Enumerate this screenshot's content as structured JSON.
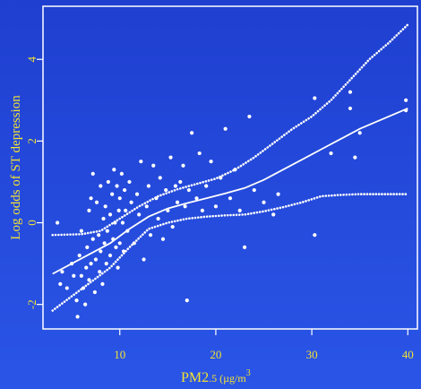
{
  "colors": {
    "background": "#2448dc",
    "foreground": "#ffffff",
    "text": "#f2e233"
  },
  "chart_data": {
    "type": "scatter",
    "title": "",
    "xlabel": "PM2.5 (µg/m",
    "xlabel_parts": {
      "base": "PM2",
      "sub": ".5 (µg/m",
      "sup": "3"
    },
    "ylabel": "Log odds of ST depression",
    "xlim": [
      2,
      41
    ],
    "ylim": [
      -2.6,
      5.3
    ],
    "x_ticks": [
      10,
      20,
      30,
      40
    ],
    "y_ticks": [
      -2,
      0,
      2,
      4
    ],
    "grid": false,
    "series": [
      {
        "style": "line",
        "points": [
          [
            3,
            -1.25
          ],
          [
            5,
            -1.0
          ],
          [
            7,
            -0.75
          ],
          [
            9,
            -0.5
          ],
          [
            11,
            -0.15
          ],
          [
            13,
            0.15
          ],
          [
            15,
            0.35
          ],
          [
            17,
            0.48
          ],
          [
            19,
            0.6
          ],
          [
            21,
            0.72
          ],
          [
            23,
            0.85
          ],
          [
            25,
            1.05
          ],
          [
            27,
            1.3
          ],
          [
            29,
            1.55
          ],
          [
            31,
            1.8
          ],
          [
            33,
            2.05
          ],
          [
            35,
            2.3
          ],
          [
            37,
            2.5
          ],
          [
            40,
            2.8
          ]
        ]
      },
      {
        "style": "dotted",
        "points": [
          [
            3,
            -0.3
          ],
          [
            6,
            -0.28
          ],
          [
            8,
            -0.2
          ],
          [
            10,
            0.1
          ],
          [
            12,
            0.4
          ],
          [
            14,
            0.65
          ],
          [
            16,
            0.82
          ],
          [
            18,
            0.95
          ],
          [
            20,
            1.08
          ],
          [
            22,
            1.3
          ],
          [
            24,
            1.6
          ],
          [
            26,
            1.95
          ],
          [
            28,
            2.3
          ],
          [
            30,
            2.6
          ],
          [
            32,
            3.0
          ],
          [
            34,
            3.5
          ],
          [
            36,
            4.0
          ],
          [
            38,
            4.4
          ],
          [
            40,
            4.85
          ]
        ]
      },
      {
        "style": "dotted",
        "points": [
          [
            3,
            -2.15
          ],
          [
            5,
            -1.8
          ],
          [
            7,
            -1.45
          ],
          [
            9,
            -1.1
          ],
          [
            11,
            -0.6
          ],
          [
            13,
            -0.15
          ],
          [
            15,
            0.0
          ],
          [
            17,
            0.1
          ],
          [
            19,
            0.15
          ],
          [
            21,
            0.18
          ],
          [
            23,
            0.2
          ],
          [
            25,
            0.28
          ],
          [
            27,
            0.38
          ],
          [
            29,
            0.5
          ],
          [
            31,
            0.65
          ],
          [
            33,
            0.68
          ],
          [
            35,
            0.7
          ],
          [
            37,
            0.7
          ],
          [
            40,
            0.7
          ]
        ]
      },
      {
        "style": "points",
        "points": [
          [
            3.5,
            0.0
          ],
          [
            3.8,
            -1.5
          ],
          [
            4,
            -1.2
          ],
          [
            4.5,
            -1.6
          ],
          [
            5,
            -1.0
          ],
          [
            5.2,
            -1.3
          ],
          [
            5.5,
            -1.9
          ],
          [
            5.6,
            -2.3
          ],
          [
            5.8,
            -0.8
          ],
          [
            6,
            -1.3
          ],
          [
            6,
            -0.2
          ],
          [
            6.2,
            -1.6
          ],
          [
            6.4,
            -2.0
          ],
          [
            6.5,
            -1.1
          ],
          [
            6.6,
            -0.6
          ],
          [
            6.8,
            -1.4
          ],
          [
            6.8,
            0.3
          ],
          [
            7,
            -1.0
          ],
          [
            7,
            0.6
          ],
          [
            7.2,
            -0.4
          ],
          [
            7.2,
            1.2
          ],
          [
            7.4,
            -1.7
          ],
          [
            7.5,
            -0.9
          ],
          [
            7.6,
            0.5
          ],
          [
            7.8,
            -0.3
          ],
          [
            7.9,
            -1.2
          ],
          [
            8,
            0.9
          ],
          [
            8,
            -0.7
          ],
          [
            8.2,
            -1.5
          ],
          [
            8.3,
            0.1
          ],
          [
            8.4,
            -0.5
          ],
          [
            8.5,
            0.4
          ],
          [
            8.6,
            -1.0
          ],
          [
            8.7,
            -0.2
          ],
          [
            8.8,
            1.0
          ],
          [
            9,
            -0.8
          ],
          [
            9,
            0.2
          ],
          [
            9.2,
            0.7
          ],
          [
            9.3,
            -0.4
          ],
          [
            9.4,
            1.3
          ],
          [
            9.5,
            0.0
          ],
          [
            9.6,
            -0.6
          ],
          [
            9.7,
            0.9
          ],
          [
            9.8,
            -1.1
          ],
          [
            9.9,
            0.3
          ],
          [
            10,
            0.6
          ],
          [
            10,
            -0.5
          ],
          [
            10.2,
            1.2
          ],
          [
            10.3,
            0.0
          ],
          [
            10.4,
            -0.7
          ],
          [
            10.5,
            0.8
          ],
          [
            10.6,
            0.3
          ],
          [
            10.8,
            -0.2
          ],
          [
            11,
            1.0
          ],
          [
            11.2,
            0.5
          ],
          [
            11.5,
            -0.5
          ],
          [
            11.8,
            0.7
          ],
          [
            12,
            0.2
          ],
          [
            12.2,
            1.5
          ],
          [
            12.5,
            -0.9
          ],
          [
            12.8,
            0.4
          ],
          [
            13,
            0.9
          ],
          [
            13.2,
            -0.3
          ],
          [
            13.5,
            1.4
          ],
          [
            13.8,
            0.6
          ],
          [
            14,
            0.1
          ],
          [
            14.2,
            1.1
          ],
          [
            14.5,
            -0.4
          ],
          [
            14.8,
            0.8
          ],
          [
            15,
            0.3
          ],
          [
            15.3,
            1.6
          ],
          [
            15.5,
            -0.1
          ],
          [
            15.8,
            0.9
          ],
          [
            16,
            0.5
          ],
          [
            16.3,
            1.0
          ],
          [
            16.6,
            1.4
          ],
          [
            16.8,
            0.4
          ],
          [
            17,
            -1.9
          ],
          [
            17.2,
            0.8
          ],
          [
            17.5,
            2.2
          ],
          [
            18,
            0.6
          ],
          [
            18.3,
            1.7
          ],
          [
            18.6,
            0.3
          ],
          [
            19,
            0.9
          ],
          [
            19.5,
            1.5
          ],
          [
            20,
            0.4
          ],
          [
            20.5,
            1.1
          ],
          [
            21,
            2.3
          ],
          [
            21.5,
            0.6
          ],
          [
            22,
            1.3
          ],
          [
            22.5,
            0.3
          ],
          [
            23,
            -0.6
          ],
          [
            23.5,
            2.6
          ],
          [
            24,
            0.8
          ],
          [
            25,
            0.5
          ],
          [
            26,
            0.2
          ],
          [
            26.5,
            0.7
          ],
          [
            30.3,
            3.05
          ],
          [
            30.3,
            -0.3
          ],
          [
            32,
            1.7
          ],
          [
            34,
            3.2
          ],
          [
            34,
            2.8
          ],
          [
            34.5,
            1.6
          ],
          [
            35,
            2.2
          ],
          [
            39.8,
            3.0
          ],
          [
            39.8,
            2.75
          ]
        ]
      }
    ]
  }
}
